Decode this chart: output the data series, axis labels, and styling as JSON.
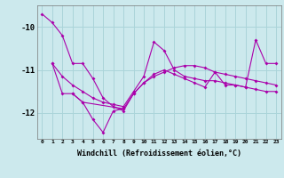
{
  "xlabel": "Windchill (Refroidissement éolien,°C)",
  "background_color": "#cce9ed",
  "grid_color": "#aad4d9",
  "line_color": "#aa00aa",
  "x_ticks": [
    0,
    1,
    2,
    3,
    4,
    5,
    6,
    7,
    8,
    9,
    10,
    11,
    12,
    13,
    14,
    15,
    16,
    17,
    18,
    19,
    20,
    21,
    22,
    23
  ],
  "y_ticks": [
    -10,
    -11,
    -12
  ],
  "xlim": [
    -0.5,
    23.5
  ],
  "ylim": [
    -12.6,
    -9.5
  ],
  "series": [
    [
      -9.7,
      -9.9,
      -10.2,
      -10.85,
      -10.85,
      -11.2,
      -11.65,
      -11.85,
      -11.95,
      -11.55,
      -11.3,
      -11.15,
      -11.05,
      -10.95,
      -10.9,
      -10.9,
      -10.95,
      -11.05,
      -11.1,
      -11.15,
      -11.2,
      -11.25,
      -11.3,
      -11.35
    ],
    [
      null,
      -10.85,
      -11.15,
      -11.35,
      -11.5,
      -11.65,
      -11.75,
      -11.8,
      -11.85,
      -11.5,
      -11.15,
      -10.35,
      -10.55,
      -11.0,
      -11.15,
      -11.2,
      -11.25,
      -11.25,
      -11.3,
      -11.35,
      -11.4,
      -11.45,
      -11.5,
      -11.5
    ],
    [
      null,
      -10.85,
      -11.55,
      -11.55,
      -11.75,
      -12.15,
      -12.45,
      -11.95,
      -11.9,
      -11.55,
      -11.3,
      -11.1,
      -11.0,
      -11.1,
      -11.2,
      -11.3,
      -11.4,
      -11.05,
      -11.35,
      -11.35,
      -11.4,
      -10.3,
      -10.85,
      -10.85
    ],
    [
      null,
      null,
      null,
      -11.55,
      -11.75,
      null,
      null,
      null,
      -11.9,
      null,
      null,
      null,
      null,
      null,
      null,
      null,
      null,
      null,
      null,
      null,
      null,
      null,
      null,
      null
    ]
  ]
}
